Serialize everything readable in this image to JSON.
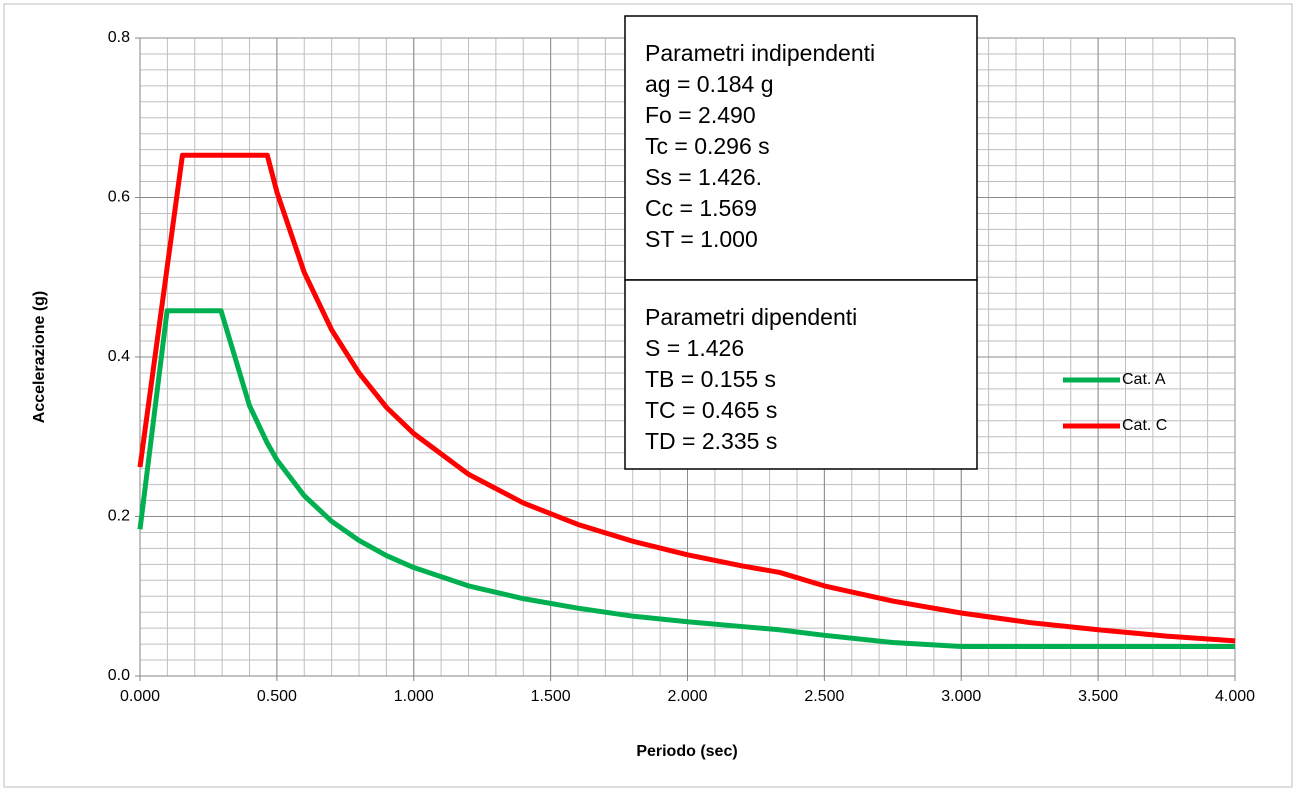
{
  "chart_data": {
    "type": "line",
    "xlabel": "Periodo (sec)",
    "ylabel": "Accelerazione (g)",
    "x": [
      0,
      0.099,
      0.155,
      0.296,
      0.4,
      0.465,
      0.5,
      0.6,
      0.7,
      0.8,
      0.9,
      1.0,
      1.2,
      1.4,
      1.6,
      1.8,
      2.0,
      2.2,
      2.335,
      2.5,
      2.75,
      3.0,
      3.25,
      3.5,
      3.75,
      4.0
    ],
    "series": [
      {
        "name": "Cat. A",
        "color": "#00b050",
        "values": [
          0.184,
          0.458,
          0.458,
          0.458,
          0.339,
          0.292,
          0.271,
          0.226,
          0.194,
          0.17,
          0.151,
          0.136,
          0.113,
          0.097,
          0.085,
          0.075,
          0.068,
          0.062,
          0.058,
          0.051,
          0.042,
          0.037,
          0.037,
          0.037,
          0.037,
          0.037
        ]
      },
      {
        "name": "Cat. C",
        "color": "#ff0000",
        "values": [
          0.262,
          0.512,
          0.653,
          0.653,
          0.653,
          0.653,
          0.607,
          0.506,
          0.434,
          0.38,
          0.337,
          0.304,
          0.253,
          0.217,
          0.19,
          0.169,
          0.152,
          0.138,
          0.13,
          0.113,
          0.094,
          0.079,
          0.067,
          0.058,
          0.05,
          0.044
        ]
      }
    ],
    "xlim": [
      0,
      4
    ],
    "ylim": [
      0,
      0.8
    ],
    "xticks": [
      {
        "value": 0,
        "label": "0.000"
      },
      {
        "value": 0.5,
        "label": "0.500"
      },
      {
        "value": 1,
        "label": "1.000"
      },
      {
        "value": 1.5,
        "label": "1.500"
      },
      {
        "value": 2,
        "label": "2.000"
      },
      {
        "value": 2.5,
        "label": "2.500"
      },
      {
        "value": 3,
        "label": "3.000"
      },
      {
        "value": 3.5,
        "label": "3.500"
      },
      {
        "value": 4,
        "label": "4.000"
      }
    ],
    "yticks": [
      {
        "value": 0,
        "label": "0.0"
      },
      0.2,
      0.4,
      0.6,
      0.8
    ],
    "grid": true,
    "minor_grid": {
      "x": 0.1,
      "y": 0.02
    },
    "legend": "right",
    "annotations": [
      {
        "lines": [
          "Parametri indipendenti",
          "ag = 0.184 g",
          "Fo = 2.490",
          "Tc = 0.296 s",
          "Ss = 1.426.",
          "Cc = 1.569",
          "ST = 1.000"
        ]
      },
      {
        "lines": [
          "Parametri dipendenti",
          "S = 1.426",
          "TB = 0.155 s",
          "TC = 0.465 s",
          "TD = 2.335 s"
        ]
      }
    ]
  }
}
